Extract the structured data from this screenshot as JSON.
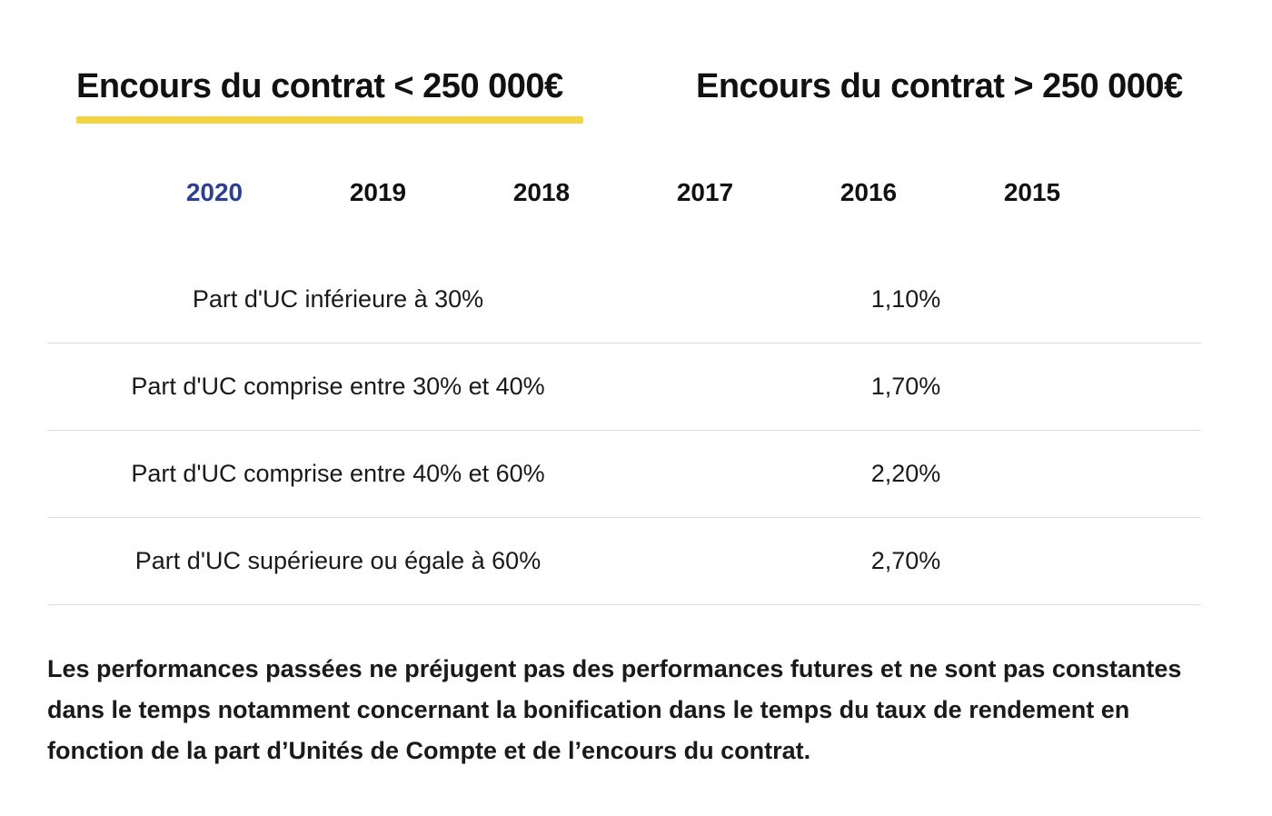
{
  "main_tabs": [
    {
      "label": "Encours du contrat < 250 000€",
      "active": true
    },
    {
      "label": "Encours du contrat > 250 000€",
      "active": false
    }
  ],
  "year_tabs": [
    {
      "label": "2020",
      "active": true
    },
    {
      "label": "2019",
      "active": false
    },
    {
      "label": "2018",
      "active": false
    },
    {
      "label": "2017",
      "active": false
    },
    {
      "label": "2016",
      "active": false
    },
    {
      "label": "2015",
      "active": false
    }
  ],
  "table": {
    "rows": [
      {
        "label": "Part d'UC inférieure à 30%",
        "value": "1,10%"
      },
      {
        "label": "Part d'UC comprise entre 30% et 40%",
        "value": "1,70%"
      },
      {
        "label": "Part d'UC comprise entre 40% et 60%",
        "value": "2,20%"
      },
      {
        "label": "Part d'UC supérieure ou égale à 60%",
        "value": "2,70%"
      }
    ]
  },
  "disclaimer": "Les performances passées ne préjugent pas des performances futures et ne sont pas constantes dans le temps notamment concernant la bonification dans le temps du taux de rendement en fonction de la part d’Unités de Compte et de l’encours du contrat.",
  "colors": {
    "accent_underline": "#f5d442",
    "active_year": "#2b3f99",
    "divider": "#dedede"
  }
}
